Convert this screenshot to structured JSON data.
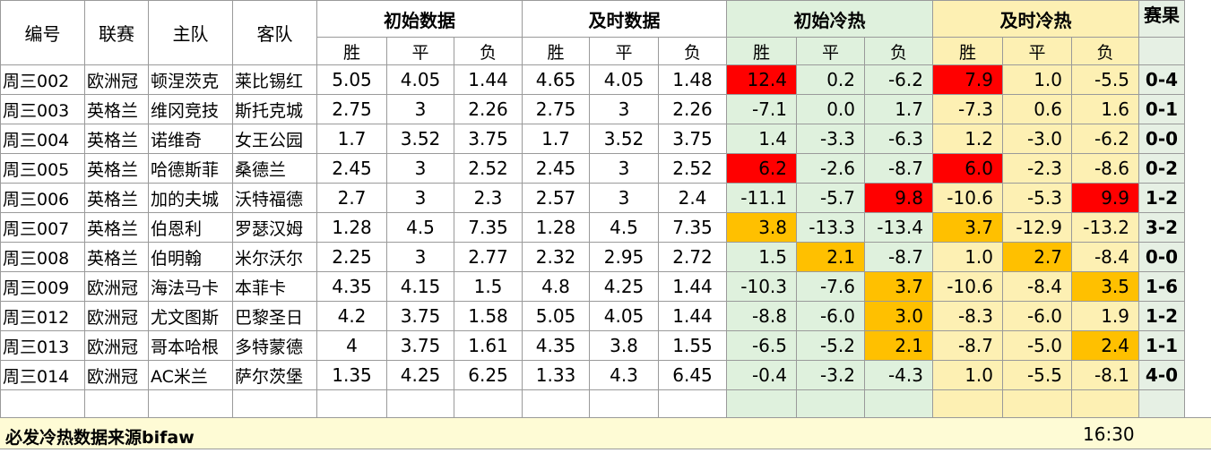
{
  "headers": {
    "id": "编号",
    "league": "联赛",
    "home": "主队",
    "away": "客队",
    "initial_odds": "初始数据",
    "live_odds": "及时数据",
    "initial_heat": "初始冷热",
    "live_heat": "及时冷热",
    "result": "赛果",
    "sub": [
      "胜",
      "平",
      "负"
    ]
  },
  "colors": {
    "heat_red": "#ff0000",
    "heat_orange": "#ffc000",
    "initial_heat_bg": "#dff1dd",
    "live_heat_bg": "#fdf0b3",
    "footer_bg": "#fefbd5"
  },
  "rows": [
    {
      "id": "周三002",
      "league": "欧洲冠",
      "home": "顿涅茨克",
      "away": "莱比锡红",
      "i": [
        "5.05",
        "4.05",
        "1.44"
      ],
      "l": [
        "4.65",
        "4.05",
        "1.48"
      ],
      "ih": [
        "12.4",
        "0.2",
        "-6.2"
      ],
      "lh": [
        "7.9",
        "1.0",
        "-5.5"
      ],
      "res": "0-4",
      "ihl": [
        "red",
        "",
        ""
      ],
      "lhl": [
        "red",
        "",
        ""
      ]
    },
    {
      "id": "周三003",
      "league": "英格兰",
      "home": "维冈竞技",
      "away": "斯托克城",
      "i": [
        "2.75",
        "3",
        "2.26"
      ],
      "l": [
        "2.75",
        "3",
        "2.26"
      ],
      "ih": [
        "-7.1",
        "0.0",
        "1.7"
      ],
      "lh": [
        "-7.3",
        "0.6",
        "1.6"
      ],
      "res": "0-1",
      "ihl": [
        "",
        "",
        ""
      ],
      "lhl": [
        "",
        "",
        ""
      ]
    },
    {
      "id": "周三004",
      "league": "英格兰",
      "home": "诺维奇",
      "away": "女王公园",
      "i": [
        "1.7",
        "3.52",
        "3.75"
      ],
      "l": [
        "1.7",
        "3.52",
        "3.75"
      ],
      "ih": [
        "1.4",
        "-3.3",
        "-6.3"
      ],
      "lh": [
        "1.2",
        "-3.0",
        "-6.2"
      ],
      "res": "0-0",
      "ihl": [
        "",
        "",
        ""
      ],
      "lhl": [
        "",
        "",
        ""
      ]
    },
    {
      "id": "周三005",
      "league": "英格兰",
      "home": "哈德斯菲",
      "away": "桑德兰",
      "i": [
        "2.45",
        "3",
        "2.52"
      ],
      "l": [
        "2.45",
        "3",
        "2.52"
      ],
      "ih": [
        "6.2",
        "-2.6",
        "-8.7"
      ],
      "lh": [
        "6.0",
        "-2.3",
        "-8.6"
      ],
      "res": "0-2",
      "ihl": [
        "red",
        "",
        ""
      ],
      "lhl": [
        "red",
        "",
        ""
      ]
    },
    {
      "id": "周三006",
      "league": "英格兰",
      "home": "加的夫城",
      "away": "沃特福德",
      "i": [
        "2.7",
        "3",
        "2.3"
      ],
      "l": [
        "2.57",
        "3",
        "2.4"
      ],
      "ih": [
        "-11.1",
        "-5.7",
        "9.8"
      ],
      "lh": [
        "-10.6",
        "-5.3",
        "9.9"
      ],
      "res": "1-2",
      "ihl": [
        "",
        "",
        "red"
      ],
      "lhl": [
        "",
        "",
        "red"
      ]
    },
    {
      "id": "周三007",
      "league": "英格兰",
      "home": "伯恩利",
      "away": "罗瑟汉姆",
      "i": [
        "1.28",
        "4.5",
        "7.35"
      ],
      "l": [
        "1.28",
        "4.5",
        "7.35"
      ],
      "ih": [
        "3.8",
        "-13.3",
        "-13.4"
      ],
      "lh": [
        "3.7",
        "-12.9",
        "-13.2"
      ],
      "res": "3-2",
      "ihl": [
        "orange",
        "",
        ""
      ],
      "lhl": [
        "orange",
        "",
        ""
      ]
    },
    {
      "id": "周三008",
      "league": "英格兰",
      "home": "伯明翰",
      "away": "米尔沃尔",
      "i": [
        "2.25",
        "3",
        "2.77"
      ],
      "l": [
        "2.32",
        "2.95",
        "2.72"
      ],
      "ih": [
        "1.5",
        "2.1",
        "-8.7"
      ],
      "lh": [
        "1.0",
        "2.7",
        "-8.4"
      ],
      "res": "0-0",
      "ihl": [
        "",
        "orange",
        ""
      ],
      "lhl": [
        "",
        "orange",
        ""
      ]
    },
    {
      "id": "周三009",
      "league": "欧洲冠",
      "home": "海法马卡",
      "away": "本菲卡",
      "i": [
        "4.35",
        "4.15",
        "1.5"
      ],
      "l": [
        "4.8",
        "4.25",
        "1.44"
      ],
      "ih": [
        "-10.3",
        "-7.6",
        "3.7"
      ],
      "lh": [
        "-10.6",
        "-8.4",
        "3.5"
      ],
      "res": "1-6",
      "ihl": [
        "",
        "",
        "orange"
      ],
      "lhl": [
        "",
        "",
        "orange"
      ]
    },
    {
      "id": "周三012",
      "league": "欧洲冠",
      "home": "尤文图斯",
      "away": "巴黎圣日",
      "i": [
        "4.2",
        "3.75",
        "1.58"
      ],
      "l": [
        "5.05",
        "4.05",
        "1.44"
      ],
      "ih": [
        "-8.8",
        "-6.0",
        "3.0"
      ],
      "lh": [
        "-8.3",
        "-6.0",
        "1.9"
      ],
      "res": "1-2",
      "ihl": [
        "",
        "",
        "orange"
      ],
      "lhl": [
        "",
        "",
        ""
      ]
    },
    {
      "id": "周三013",
      "league": "欧洲冠",
      "home": "哥本哈根",
      "away": "多特蒙德",
      "i": [
        "4",
        "3.75",
        "1.61"
      ],
      "l": [
        "4.35",
        "3.8",
        "1.55"
      ],
      "ih": [
        "-6.5",
        "-5.2",
        "2.1"
      ],
      "lh": [
        "-8.7",
        "-5.0",
        "2.4"
      ],
      "res": "1-1",
      "ihl": [
        "",
        "",
        "orange"
      ],
      "lhl": [
        "",
        "",
        "orange"
      ]
    },
    {
      "id": "周三014",
      "league": "欧洲冠",
      "home": "AC米兰",
      "away": "萨尔茨堡",
      "i": [
        "1.35",
        "4.25",
        "6.25"
      ],
      "l": [
        "1.33",
        "4.3",
        "6.45"
      ],
      "ih": [
        "-0.4",
        "-3.2",
        "-4.3"
      ],
      "lh": [
        "1.0",
        "-5.5",
        "-8.1"
      ],
      "res": "4-0",
      "ihl": [
        "",
        "",
        ""
      ],
      "lhl": [
        "",
        "",
        ""
      ]
    }
  ],
  "footer": {
    "source": "必发冷热数据来源bifaw",
    "time": "16:30"
  }
}
